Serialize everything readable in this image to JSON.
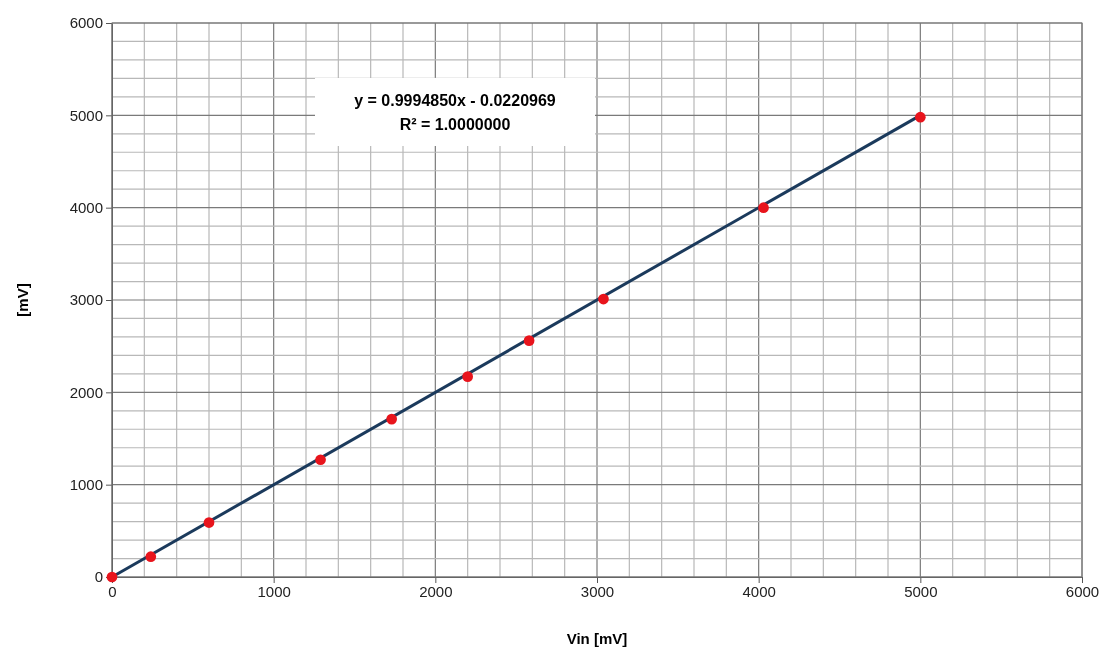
{
  "chart_data": {
    "type": "scatter",
    "xlabel": "Vin [mV]",
    "ylabel": "[mV]",
    "annotations": [
      "y = 0.9994850x - 0.0220969",
      "R² = 1.0000000"
    ],
    "series": [
      {
        "color": "#e8141c",
        "marker": "circle",
        "x": [
          0,
          240,
          600,
          1290,
          1730,
          2200,
          2580,
          3040,
          4030,
          5000
        ],
        "values": [
          0,
          220,
          590,
          1270,
          1710,
          2170,
          2560,
          3010,
          4000,
          4980
        ]
      },
      {
        "type": "line",
        "color": "#1b3a5c",
        "marker": "none",
        "x": [
          0,
          5000
        ],
        "values": [
          0,
          5000
        ]
      }
    ],
    "grid": true,
    "xlim": [
      0,
      6000
    ],
    "ylim": [
      0,
      6000
    ],
    "xticks": [
      0,
      {
        "value": 200,
        "label": null
      },
      {
        "value": 400,
        "label": null
      },
      {
        "value": 600,
        "label": null
      },
      {
        "value": 800,
        "label": null
      },
      1000,
      {
        "value": 1200,
        "label": null
      },
      {
        "value": 1400,
        "label": null
      },
      {
        "value": 1600,
        "label": null
      },
      {
        "value": 1800,
        "label": null
      },
      2000,
      {
        "value": 2200,
        "label": null
      },
      {
        "value": 2400,
        "label": null
      },
      {
        "value": 2600,
        "label": null
      },
      {
        "value": 2800,
        "label": null
      },
      3000,
      {
        "value": 3200,
        "label": null
      },
      {
        "value": 3400,
        "label": null
      },
      {
        "value": 3600,
        "label": null
      },
      {
        "value": 3800,
        "label": null
      },
      4000,
      {
        "value": 4200,
        "label": null
      },
      {
        "value": 4400,
        "label": null
      },
      {
        "value": 4600,
        "label": null
      },
      {
        "value": 4800,
        "label": null
      },
      5000,
      {
        "value": 5200,
        "label": null
      },
      {
        "value": 5400,
        "label": null
      },
      {
        "value": 5600,
        "label": null
      },
      {
        "value": 5800,
        "label": null
      },
      6000
    ],
    "yticks": [
      0,
      {
        "value": 200,
        "label": null
      },
      {
        "value": 400,
        "label": null
      },
      {
        "value": 600,
        "label": null
      },
      {
        "value": 800,
        "label": null
      },
      1000,
      {
        "value": 1200,
        "label": null
      },
      {
        "value": 1400,
        "label": null
      },
      {
        "value": 1600,
        "label": null
      },
      {
        "value": 1800,
        "label": null
      },
      2000,
      {
        "value": 2200,
        "label": null
      },
      {
        "value": 2400,
        "label": null
      },
      {
        "value": 2600,
        "label": null
      },
      {
        "value": 2800,
        "label": null
      },
      3000,
      {
        "value": 3200,
        "label": null
      },
      {
        "value": 3400,
        "label": null
      },
      {
        "value": 3600,
        "label": null
      },
      {
        "value": 3800,
        "label": null
      },
      4000,
      {
        "value": 4200,
        "label": null
      },
      {
        "value": 4400,
        "label": null
      },
      {
        "value": 4600,
        "label": null
      },
      {
        "value": 4800,
        "label": null
      },
      5000,
      {
        "value": 5200,
        "label": null
      },
      {
        "value": 5400,
        "label": null
      },
      {
        "value": 5600,
        "label": null
      },
      {
        "value": 5800,
        "label": null
      },
      6000
    ]
  }
}
